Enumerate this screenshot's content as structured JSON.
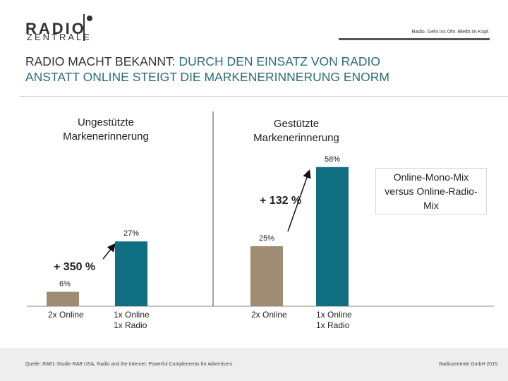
{
  "header": {
    "logo_top": "RADIO",
    "logo_bottom": "ZENTRALE",
    "tagline": "Radio. Geht ins Ohr. Bleibt im Kopf."
  },
  "title": {
    "part1": "RADIO MACHT BEKANNT: ",
    "part2": "DURCH DEN EINSATZ VON RADIO",
    "line2": "ANSTATT ONLINE STEIGT DIE MARKENERINNERUNG ENORM"
  },
  "groups": {
    "left_title": "Ungestützte Markenerinnerung",
    "right_title": "Gestützte Markenerinnerung"
  },
  "annotations": {
    "left_increase": "+ 350 %",
    "right_increase": "+ 132 %",
    "note": "Online-Mono-Mix versus Online-Radio-Mix"
  },
  "chart_data": {
    "type": "bar",
    "groups": [
      "Ungestützte Markenerinnerung",
      "Gestützte Markenerinnerung"
    ],
    "bars": [
      {
        "group": 0,
        "category": "2x Online",
        "value": 6,
        "label": "6%",
        "color": "#a08c73"
      },
      {
        "group": 0,
        "category": "1x Online 1x Radio",
        "value": 27,
        "label": "27%",
        "color": "#0f6e82"
      },
      {
        "group": 1,
        "category": "2x Online",
        "value": 25,
        "label": "25%",
        "color": "#a08c73"
      },
      {
        "group": 1,
        "category": "1x Online 1x Radio",
        "value": 58,
        "label": "58%",
        "color": "#0f6e82"
      }
    ],
    "ylim": [
      0,
      60
    ],
    "grid": false
  },
  "footer": {
    "source": "Quelle: RAEL-Studie RAB USA, Radio and the Internet: Powerful Complements for Advertisers",
    "copyright": "Radiozentrale GmbH 2015"
  }
}
